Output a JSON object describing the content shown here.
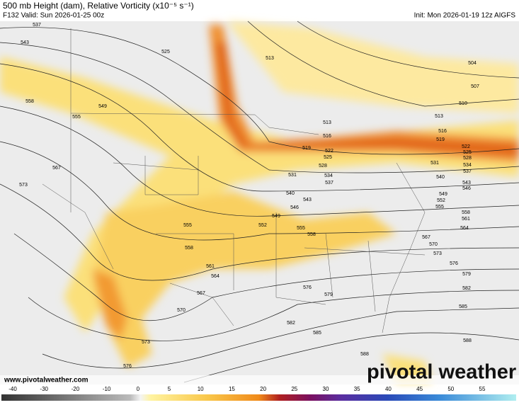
{
  "header": {
    "title": "500 mb Height (dam), Relative Vorticity (x10⁻⁵ s⁻¹)",
    "valid": "F132 Valid: Sun 2026-01-25 00z",
    "init": "Init: Mon 2026-01-19 12z AIGFS"
  },
  "contour_labels": [
    537,
    543,
    549,
    555,
    558,
    567,
    573,
    555,
    558,
    561,
    564,
    567,
    570,
    573,
    576,
    576,
    579,
    582,
    585,
    588,
    525,
    513,
    504,
    507,
    510,
    513,
    516,
    519,
    522,
    525,
    528,
    531,
    534,
    537,
    540,
    543,
    546,
    549,
    552,
    555,
    558,
    561,
    564,
    567,
    570,
    573,
    576,
    579,
    582,
    585,
    588,
    513,
    516,
    519,
    522,
    525,
    528,
    531,
    534,
    537,
    540,
    543,
    546,
    549,
    552,
    555,
    558
  ],
  "colorbar": {
    "ticks": [
      -40,
      -30,
      -20,
      -10,
      0,
      5,
      10,
      15,
      20,
      25,
      30,
      35,
      40,
      45,
      50,
      55
    ]
  },
  "footer": {
    "website": "www.pivotalweather.com",
    "logo": "pivotal weather"
  }
}
